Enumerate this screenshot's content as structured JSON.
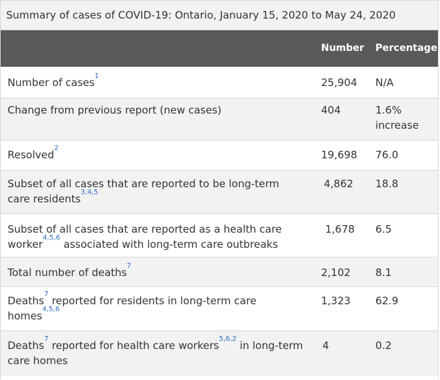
{
  "caption": "Summary of cases of COVID-19: Ontario, January 15, 2020 to May 24, 2020",
  "headers": {
    "number": "Number",
    "percentage": "Percentage"
  },
  "rows": [
    {
      "label_a": "Number of cases",
      "sup_a": "1",
      "label_b": "",
      "sup_b": "",
      "label_c": "",
      "number": "25,904",
      "percentage": "N/A"
    },
    {
      "label_a": "Change from previous report (new cases)",
      "sup_a": "",
      "label_b": "",
      "sup_b": "",
      "label_c": "",
      "number": "404",
      "percentage": "1.6% increase"
    },
    {
      "label_a": "Resolved",
      "sup_a": "2",
      "label_b": "",
      "sup_b": "",
      "label_c": "",
      "number": "19,698",
      "percentage": "76.0"
    },
    {
      "label_a": "Subset of all cases that are reported to be long-term care residents",
      "sup_a": "3,4,5",
      "label_b": "",
      "sup_b": "",
      "label_c": "",
      "number": "4,862",
      "percentage": "18.8"
    },
    {
      "label_a": "Subset of all cases that are reported as a health care worker",
      "sup_a": "4,5,6",
      "label_b": " associated with long-term care outbreaks",
      "sup_b": "",
      "label_c": "",
      "number": "1,678",
      "percentage": "6.5"
    },
    {
      "label_a": "Total number of deaths",
      "sup_a": "7",
      "label_b": "",
      "sup_b": "",
      "label_c": "",
      "number": "2,102",
      "percentage": "8.1"
    },
    {
      "label_a": "Deaths",
      "sup_a": "7",
      "label_b": " reported for residents in long-term care homes",
      "sup_b": "4,5,6",
      "label_c": "",
      "number": "1,323",
      "percentage": "62.9"
    },
    {
      "label_a": "Deaths",
      "sup_a": "7",
      "label_b": " reported for health care workers",
      "sup_b": "5,6,2",
      "label_c": " in long-term care homes",
      "number": "4",
      "percentage": "0.2"
    }
  ]
}
